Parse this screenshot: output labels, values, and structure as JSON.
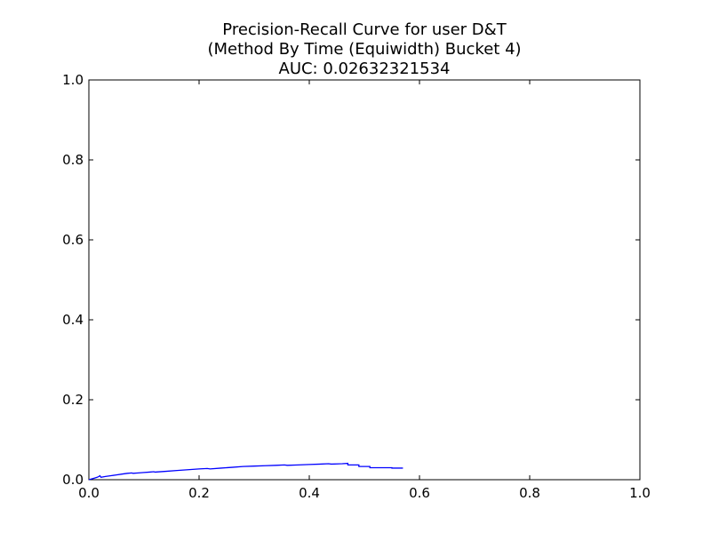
{
  "chart_data": {
    "type": "line",
    "title": [
      "Precision-Recall Curve for user D&T",
      "(Method By Time (Equiwidth) Bucket 4)",
      "AUC: 0.02632321534"
    ],
    "xlabel": "",
    "ylabel": "",
    "xlim": [
      0.0,
      1.0
    ],
    "ylim": [
      0.0,
      1.0
    ],
    "xticks": [
      0.0,
      0.2,
      0.4,
      0.6,
      0.8,
      1.0
    ],
    "yticks": [
      0.0,
      0.2,
      0.4,
      0.6,
      0.8,
      1.0
    ],
    "xtick_labels": [
      "0.0",
      "0.2",
      "0.4",
      "0.6",
      "0.8",
      "1.0"
    ],
    "ytick_labels": [
      "0.0",
      "0.2",
      "0.4",
      "0.6",
      "0.8",
      "1.0"
    ],
    "grid": false,
    "series": [
      {
        "name": "precision-recall",
        "color": "#0000ff",
        "x": [
          0.0,
          0.005,
          0.01,
          0.015,
          0.018,
          0.02,
          0.022,
          0.03,
          0.04,
          0.05,
          0.06,
          0.07,
          0.078,
          0.08,
          0.09,
          0.1,
          0.11,
          0.118,
          0.12,
          0.14,
          0.16,
          0.18,
          0.2,
          0.215,
          0.22,
          0.24,
          0.26,
          0.28,
          0.3,
          0.32,
          0.34,
          0.355,
          0.36,
          0.38,
          0.4,
          0.42,
          0.435,
          0.44,
          0.46,
          0.47,
          0.47,
          0.49,
          0.49,
          0.51,
          0.51,
          0.55,
          0.55,
          0.57
        ],
        "y": [
          0.0,
          0.002,
          0.004,
          0.006,
          0.008,
          0.01,
          0.006,
          0.008,
          0.01,
          0.012,
          0.014,
          0.016,
          0.017,
          0.016,
          0.017,
          0.018,
          0.019,
          0.02,
          0.019,
          0.021,
          0.023,
          0.025,
          0.027,
          0.028,
          0.027,
          0.029,
          0.031,
          0.033,
          0.034,
          0.035,
          0.036,
          0.037,
          0.036,
          0.037,
          0.038,
          0.039,
          0.04,
          0.039,
          0.04,
          0.041,
          0.037,
          0.037,
          0.033,
          0.033,
          0.03,
          0.03,
          0.029,
          0.029
        ]
      }
    ]
  }
}
